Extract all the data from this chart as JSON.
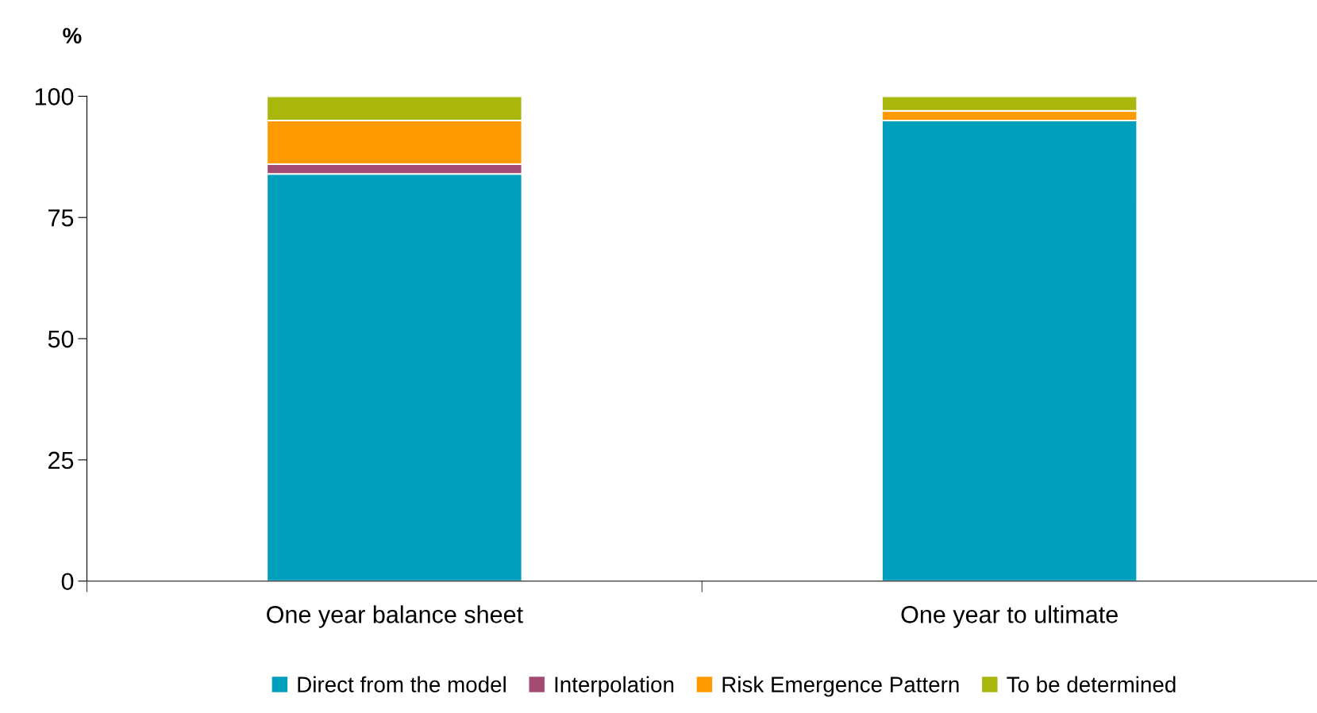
{
  "chart_data": {
    "type": "bar",
    "stacked": true,
    "ylabel": "%",
    "categories": [
      "One year balance sheet",
      "One year to ultimate"
    ],
    "series": [
      {
        "name": "Direct from the model",
        "color": "#009fbd",
        "values": [
          84,
          95
        ]
      },
      {
        "name": "Interpolation",
        "color": "#a24a72",
        "values": [
          2,
          0
        ]
      },
      {
        "name": "Risk Emergence Pattern",
        "color": "#ff9a00",
        "values": [
          9,
          2
        ]
      },
      {
        "name": "To be determined",
        "color": "#a9b70c",
        "values": [
          5,
          3
        ]
      }
    ],
    "ylim": [
      0,
      100
    ],
    "yticks": [
      0,
      25,
      50,
      75,
      100
    ],
    "grid": false,
    "legend": "bottom"
  }
}
